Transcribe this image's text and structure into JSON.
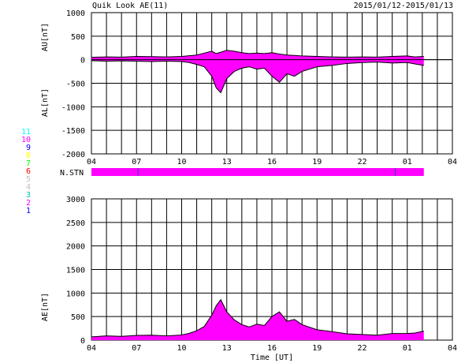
{
  "header": {
    "title": "Quik Look AE(11)",
    "date_range": "2015/01/12-2015/01/13"
  },
  "legend": {
    "items": [
      {
        "label": "11",
        "color": "#00ffff"
      },
      {
        "label": "10",
        "color": "#ff00ff"
      },
      {
        "label": "9",
        "color": "#0000ff"
      },
      {
        "label": "8",
        "color": "#ffff00"
      },
      {
        "label": "7",
        "color": "#00ff00"
      },
      {
        "label": "6",
        "color": "#ff0000"
      },
      {
        "label": "5",
        "color": "#c0c0c0"
      },
      {
        "label": "4",
        "color": "#c0c0c0"
      },
      {
        "label": "3",
        "color": "#00c0c0"
      },
      {
        "label": "2",
        "color": "#ff00ff"
      },
      {
        "label": "1",
        "color": "#0000ff"
      }
    ]
  },
  "chart_data": [
    {
      "type": "area",
      "ylabel_top": "AU[nT]",
      "ylabel_bottom": "AL[nT]",
      "ylim": [
        -2000,
        1000
      ],
      "yticks": [
        "1000",
        "500",
        "0",
        "-500",
        "-1000",
        "-1500",
        "-2000"
      ],
      "xticks": [
        "04",
        "07",
        "10",
        "13",
        "16",
        "19",
        "22",
        "01",
        "04"
      ],
      "xlim_hours": [
        4,
        28
      ],
      "fill_color": "#ff00ff",
      "series": [
        {
          "name": "AU",
          "x": [
            4,
            5,
            6,
            7,
            8,
            9,
            10,
            10.5,
            11,
            11.5,
            12,
            12.3,
            12.6,
            13,
            13.5,
            14,
            14.5,
            15,
            15.5,
            16,
            16.5,
            17,
            17.5,
            18,
            19,
            20,
            21,
            22,
            23,
            24,
            25,
            25.5,
            26.1
          ],
          "y": [
            50,
            60,
            55,
            70,
            65,
            60,
            70,
            85,
            100,
            140,
            180,
            130,
            160,
            200,
            180,
            150,
            130,
            140,
            130,
            150,
            120,
            100,
            90,
            80,
            70,
            60,
            55,
            60,
            55,
            70,
            80,
            60,
            70
          ]
        },
        {
          "name": "AL",
          "x": [
            4,
            5,
            6,
            7,
            8,
            9,
            10,
            10.5,
            11,
            11.5,
            12,
            12.3,
            12.6,
            13,
            13.5,
            14,
            14.5,
            15,
            15.5,
            16,
            16.5,
            17,
            17.5,
            18,
            19,
            20,
            21,
            22,
            23,
            24,
            25,
            25.5,
            26.1
          ],
          "y": [
            -20,
            -30,
            -25,
            -30,
            -40,
            -30,
            -40,
            -60,
            -100,
            -150,
            -350,
            -600,
            -700,
            -400,
            -250,
            -180,
            -150,
            -200,
            -180,
            -350,
            -480,
            -300,
            -350,
            -250,
            -150,
            -120,
            -80,
            -60,
            -50,
            -70,
            -60,
            -90,
            -120
          ]
        }
      ]
    },
    {
      "type": "bar",
      "label": "N.STN",
      "x": [
        4,
        26.1
      ],
      "value": 10,
      "markers": [
        7.1,
        24.2
      ]
    },
    {
      "type": "area",
      "ylabel": "AE[nT]",
      "xlabel": "Time [UT]",
      "ylim": [
        0,
        3000
      ],
      "yticks": [
        "3000",
        "2500",
        "2000",
        "1500",
        "1000",
        "500",
        "0"
      ],
      "xticks": [
        "04",
        "07",
        "10",
        "13",
        "16",
        "19",
        "22",
        "01",
        "04"
      ],
      "xlim_hours": [
        4,
        28
      ],
      "fill_color": "#ff00ff",
      "series": [
        {
          "name": "AE",
          "x": [
            4,
            5,
            6,
            7,
            8,
            9,
            10,
            10.5,
            11,
            11.5,
            12,
            12.3,
            12.6,
            13,
            13.5,
            14,
            14.5,
            15,
            15.5,
            16,
            16.5,
            17,
            17.5,
            18,
            19,
            20,
            21,
            22,
            23,
            24,
            25,
            25.5,
            26.1
          ],
          "y": [
            70,
            90,
            80,
            100,
            105,
            90,
            110,
            145,
            200,
            290,
            530,
            730,
            860,
            600,
            430,
            330,
            280,
            340,
            310,
            500,
            600,
            400,
            440,
            330,
            220,
            180,
            135,
            120,
            105,
            140,
            140,
            150,
            190
          ]
        }
      ]
    }
  ]
}
